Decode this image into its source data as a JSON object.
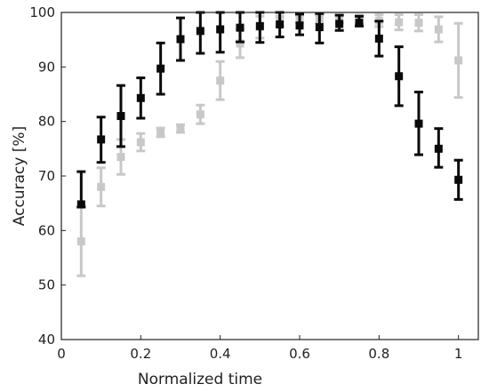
{
  "chart_data": {
    "type": "scatter",
    "title": "",
    "xlabel": "Normalized time",
    "ylabel": "Accuracy [%]",
    "xlim": [
      0,
      1.05
    ],
    "ylim": [
      40,
      100
    ],
    "x_ticks": [
      0,
      0.2,
      0.4,
      0.6,
      0.8,
      1
    ],
    "x_tick_labels": [
      "0",
      "0.2",
      "0.4",
      "0.6",
      "0.8",
      "1"
    ],
    "y_ticks": [
      40,
      50,
      60,
      70,
      80,
      90,
      100
    ],
    "y_tick_labels": [
      "40",
      "50",
      "60",
      "70",
      "80",
      "90",
      "100"
    ],
    "grid": false,
    "legend": "none",
    "series": [
      {
        "color": "#c8c8c8",
        "x": [
          0.05,
          0.1,
          0.15,
          0.2,
          0.25,
          0.3,
          0.35,
          0.4,
          0.45,
          0.5,
          0.55,
          0.6,
          0.65,
          0.7,
          0.75,
          0.8,
          0.85,
          0.9,
          0.95,
          1.0
        ],
        "y": [
          58.0,
          68.0,
          73.5,
          76.2,
          78.0,
          78.7,
          81.3,
          87.5,
          94.3,
          97.3,
          98.4,
          98.8,
          98.8,
          98.8,
          98.7,
          98.5,
          98.2,
          98.1,
          96.9,
          91.2
        ],
        "err_low": [
          51.7,
          64.5,
          70.3,
          74.6,
          77.2,
          78.0,
          79.6,
          84.0,
          91.7,
          95.3,
          97.5,
          98.1,
          98.1,
          98.1,
          97.9,
          97.4,
          96.8,
          96.6,
          94.6,
          84.4
        ],
        "err_high": [
          64.4,
          71.5,
          76.7,
          77.8,
          78.8,
          79.4,
          83.0,
          91.0,
          96.9,
          99.3,
          99.3,
          99.5,
          99.5,
          99.5,
          99.5,
          99.6,
          99.6,
          99.6,
          99.2,
          98.0
        ]
      },
      {
        "color": "#0a0a0a",
        "x": [
          0.05,
          0.1,
          0.15,
          0.2,
          0.25,
          0.3,
          0.35,
          0.4,
          0.45,
          0.5,
          0.55,
          0.6,
          0.65,
          0.7,
          0.75,
          0.8,
          0.85,
          0.9,
          0.95,
          1.0
        ],
        "y": [
          64.8,
          76.7,
          81.0,
          84.3,
          89.7,
          95.1,
          96.6,
          96.9,
          97.2,
          97.5,
          97.8,
          97.6,
          97.3,
          97.9,
          98.1,
          95.2,
          88.3,
          79.6,
          75.0,
          69.3
        ],
        "err_low": [
          64.3,
          72.5,
          75.4,
          80.6,
          85.0,
          91.2,
          92.5,
          92.7,
          94.6,
          94.5,
          95.5,
          95.9,
          94.4,
          96.7,
          97.5,
          92.0,
          82.9,
          73.9,
          71.6,
          65.7
        ],
        "err_high": [
          70.8,
          80.8,
          86.6,
          88.0,
          94.4,
          99.0,
          100.0,
          100.0,
          100.0,
          100.0,
          100.0,
          99.7,
          99.8,
          99.5,
          99.3,
          98.4,
          93.7,
          85.4,
          78.7,
          72.9
        ]
      }
    ]
  }
}
